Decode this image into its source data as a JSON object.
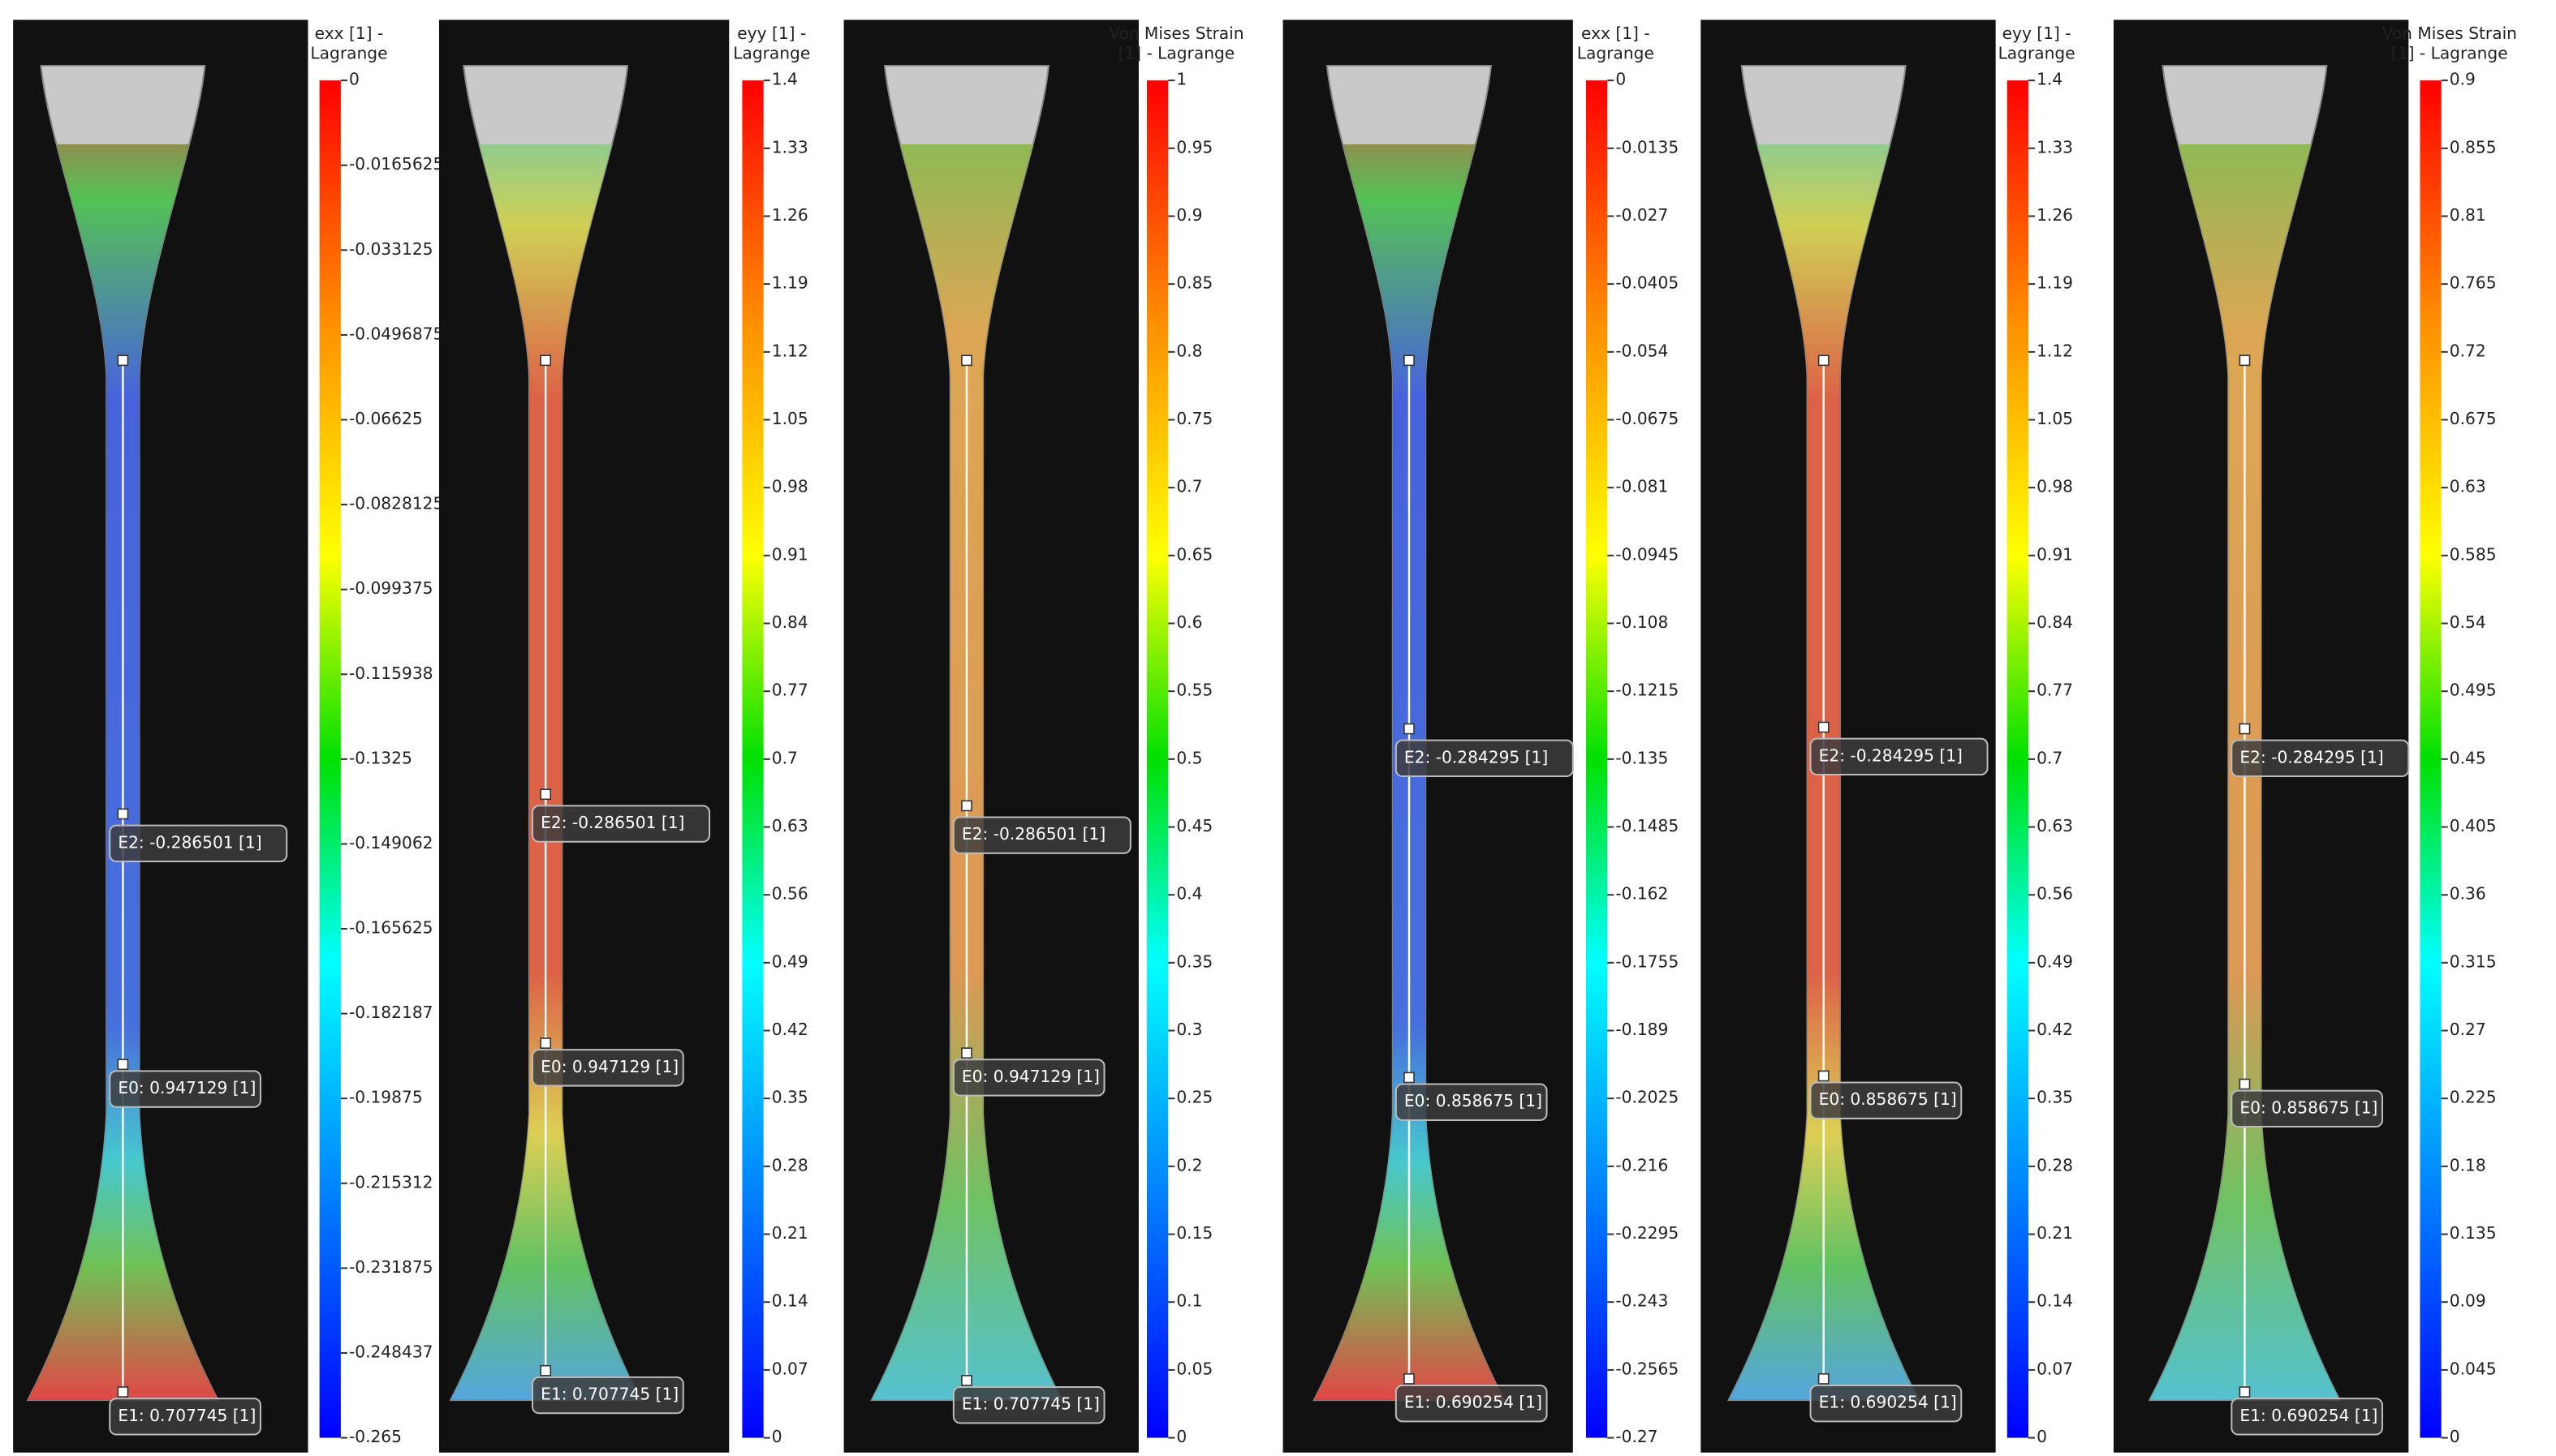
{
  "panels": [
    {
      "colorbar": {
        "title": [
          "exx [1] -",
          "Lagrange"
        ],
        "ticks": [
          0,
          -0.0165625,
          -0.033125,
          -0.0496875,
          -0.06625,
          -0.0828125,
          -0.099375,
          -0.115938,
          -0.1325,
          -0.149062,
          -0.165625,
          -0.182187,
          -0.19875,
          -0.215312,
          -0.231875,
          -0.248437,
          -0.265
        ]
      },
      "labels": [
        "E2: -0.286501 [1]",
        "E0: 0.947129 [1]",
        "E1: 0.707745 [1]"
      ]
    },
    {
      "colorbar": {
        "title": [
          "eyy [1] -",
          "Lagrange"
        ],
        "ticks": [
          1.4,
          1.33,
          1.26,
          1.19,
          1.12,
          1.05,
          0.98,
          0.91,
          0.84,
          0.77,
          0.7,
          0.63,
          0.56,
          0.49,
          0.42,
          0.35,
          0.28,
          0.21,
          0.14,
          0.07,
          0
        ]
      },
      "labels": [
        "E2: -0.286501 [1]",
        "E0: 0.947129 [1]",
        "E1: 0.707745 [1]"
      ]
    },
    {
      "colorbar": {
        "title": [
          "Von Mises Strain",
          "[1] - Lagrange"
        ],
        "ticks": [
          1,
          0.95,
          0.9,
          0.85,
          0.8,
          0.75,
          0.7,
          0.65,
          0.6,
          0.55,
          0.5,
          0.45,
          0.4,
          0.35,
          0.3,
          0.25,
          0.2,
          0.15,
          0.1,
          0.05,
          0
        ]
      },
      "labels": [
        "E2: -0.286501 [1]",
        "E0: 0.947129 [1]",
        "E1: 0.707745 [1]"
      ]
    },
    {
      "colorbar": {
        "title": [
          "exx [1] -",
          "Lagrange"
        ],
        "ticks": [
          0,
          -0.0135,
          -0.027,
          -0.0405,
          -0.054,
          -0.0675,
          -0.081,
          -0.0945,
          -0.108,
          -0.1215,
          -0.135,
          -0.1485,
          -0.162,
          -0.1755,
          -0.189,
          -0.2025,
          -0.216,
          -0.2295,
          -0.243,
          -0.2565,
          -0.27
        ]
      },
      "labels": [
        "E2: -0.284295 [1]",
        "E0: 0.858675 [1]",
        "E1: 0.690254 [1]"
      ]
    },
    {
      "colorbar": {
        "title": [
          "eyy [1] -",
          "Lagrange"
        ],
        "ticks": [
          1.4,
          1.33,
          1.26,
          1.19,
          1.12,
          1.05,
          0.98,
          0.91,
          0.84,
          0.77,
          0.7,
          0.63,
          0.56,
          0.49,
          0.42,
          0.35,
          0.28,
          0.21,
          0.14,
          0.07,
          0
        ]
      },
      "labels": [
        "E2: -0.284295 [1]",
        "E0: 0.858675 [1]",
        "E1: 0.690254 [1]"
      ]
    },
    {
      "colorbar": {
        "title": [
          "Von Mises Strain",
          "[1] - Lagrange"
        ],
        "ticks": [
          0.9,
          0.855,
          0.81,
          0.765,
          0.72,
          0.675,
          0.63,
          0.585,
          0.54,
          0.495,
          0.45,
          0.405,
          0.36,
          0.315,
          0.27,
          0.225,
          0.18,
          0.135,
          0.09,
          0.045,
          0
        ]
      },
      "labels": [
        "E2: -0.284295 [1]",
        "E0: 0.858675 [1]",
        "E1: 0.690254 [1]"
      ]
    }
  ]
}
